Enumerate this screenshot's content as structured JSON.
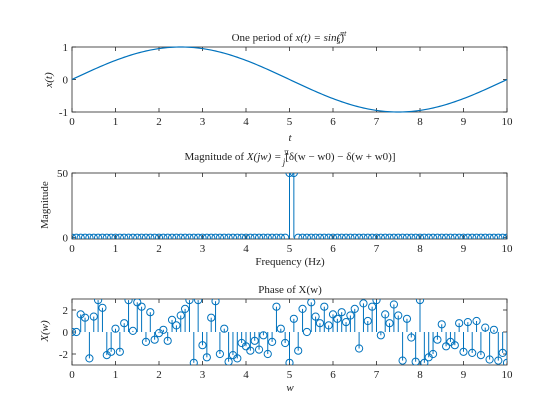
{
  "figure": {
    "background": "#ffffff",
    "axes_color": "#262626",
    "series_color": "#0072bd"
  },
  "chart_data": [
    {
      "type": "line",
      "title_parts": {
        "prefix": "One period of ",
        "math": "x(t) = sin(",
        "frac_num": "πt",
        "frac_den": "5",
        "suffix": ")"
      },
      "xlabel": "t",
      "ylabel": "x(t)",
      "xlim": [
        0,
        10
      ],
      "ylim": [
        -1,
        1
      ],
      "xticks": [
        "0",
        "1",
        "2",
        "3",
        "4",
        "5",
        "6",
        "7",
        "8",
        "9",
        "10"
      ],
      "yticks": [
        "-1",
        "0",
        "1"
      ],
      "grid": false,
      "function": "sin(pi*t/5)",
      "series": [
        {
          "x": [
            0,
            0.25,
            0.5,
            0.75,
            1,
            1.25,
            1.5,
            1.75,
            2,
            2.25,
            2.5,
            2.75,
            3,
            3.25,
            3.5,
            3.75,
            4,
            4.25,
            4.5,
            4.75,
            5,
            5.25,
            5.5,
            5.75,
            6,
            6.25,
            6.5,
            6.75,
            7,
            7.25,
            7.5,
            7.75,
            8,
            8.25,
            8.5,
            8.75,
            9,
            9.25,
            9.5,
            9.75,
            10
          ],
          "y": [
            0,
            0.156,
            0.309,
            0.454,
            0.588,
            0.707,
            0.809,
            0.891,
            0.951,
            0.988,
            1,
            0.988,
            0.951,
            0.891,
            0.809,
            0.707,
            0.588,
            0.454,
            0.309,
            0.156,
            0,
            -0.156,
            -0.309,
            -0.454,
            -0.588,
            -0.707,
            -0.809,
            -0.891,
            -0.951,
            -0.988,
            -1,
            -0.988,
            -0.951,
            -0.891,
            -0.809,
            -0.707,
            -0.588,
            -0.454,
            -0.309,
            -0.156,
            0
          ]
        }
      ]
    },
    {
      "type": "stem",
      "title_parts": {
        "prefix": "Magnitude of ",
        "math": "X(jw) = ",
        "frac_num": "π",
        "frac_den": "j",
        "suffix": "[δ(w − w0) − δ(w + w0)]"
      },
      "xlabel": "Frequency (Hz)",
      "ylabel": "Magnitude",
      "xlim": [
        0,
        10
      ],
      "ylim": [
        -1,
        50
      ],
      "xticks": [
        "0",
        "1",
        "2",
        "3",
        "4",
        "5",
        "6",
        "7",
        "8",
        "9",
        "10"
      ],
      "yticks": [
        "0",
        "50"
      ],
      "grid": false,
      "x_start": 0,
      "x_step": 0.1,
      "y": [
        0,
        0,
        0,
        0,
        0,
        0,
        0,
        0,
        0,
        0,
        0,
        0,
        0,
        0,
        0,
        0,
        0,
        0,
        0,
        0,
        0,
        0,
        0,
        0,
        0,
        0,
        0,
        0,
        0,
        0,
        0,
        0,
        0,
        0,
        0,
        0,
        0,
        0,
        0,
        0,
        0,
        0,
        0,
        0,
        0,
        0,
        0,
        0,
        0,
        0,
        50,
        50,
        0,
        0,
        0,
        0,
        0,
        0,
        0,
        0,
        0,
        0,
        0,
        0,
        0,
        0,
        0,
        0,
        0,
        0,
        0,
        0,
        0,
        0,
        0,
        0,
        0,
        0,
        0,
        0,
        0,
        0,
        0,
        0,
        0,
        0,
        0,
        0,
        0,
        0,
        0,
        0,
        0,
        0,
        0,
        0,
        0,
        0,
        0,
        0,
        0
      ]
    },
    {
      "type": "stem",
      "title_parts": {
        "prefix": "Phase of X(w)",
        "math": "",
        "frac_num": "",
        "frac_den": "",
        "suffix": ""
      },
      "xlabel": "w",
      "ylabel": "X(w)",
      "xlim": [
        0,
        10
      ],
      "ylim": [
        -3,
        3
      ],
      "xticks": [
        "0",
        "1",
        "2",
        "3",
        "4",
        "5",
        "6",
        "7",
        "8",
        "9",
        "10"
      ],
      "yticks": [
        "-2",
        "0",
        "2"
      ],
      "grid": false,
      "x_start": 0,
      "x_step": 0.1,
      "y": [
        0,
        0,
        1.6,
        1.3,
        -2.4,
        1.4,
        2.9,
        2.2,
        -2.1,
        -1.8,
        0.3,
        -1.8,
        0.8,
        2.9,
        0.1,
        2.7,
        2.3,
        -0.9,
        1.8,
        -0.7,
        -0.1,
        0.2,
        -0.8,
        1.1,
        0.6,
        1.5,
        2.1,
        2.9,
        -2.8,
        2.9,
        -1.2,
        -2.3,
        1.3,
        2.8,
        -2.0,
        0.3,
        -2.7,
        -2.1,
        -2.4,
        -1.0,
        -1.3,
        -1.7,
        -0.8,
        -1.6,
        -0.3,
        -2.0,
        -0.9,
        2.3,
        0.3,
        -1.0,
        -2.8,
        1.2,
        -1.7,
        2.1,
        0.0,
        2.7,
        1.4,
        0.8,
        2.3,
        0.6,
        1.6,
        1.2,
        1.8,
        0.9,
        1.5,
        2.1,
        -1.5,
        2.6,
        1.0,
        2.3,
        2.9,
        -0.3,
        1.6,
        0.8,
        2.5,
        1.5,
        -2.6,
        1.2,
        -0.5,
        -2.7,
        2.9,
        -2.8,
        -2.3,
        -2.0,
        -0.7,
        0.7,
        -1.3,
        -0.9,
        -1.2,
        0.8,
        -1.8,
        0.9,
        -1.9,
        1.0,
        -2.1,
        0.4,
        -2.5,
        0.2,
        -2.6,
        -1.9,
        -2.8
      ]
    }
  ]
}
